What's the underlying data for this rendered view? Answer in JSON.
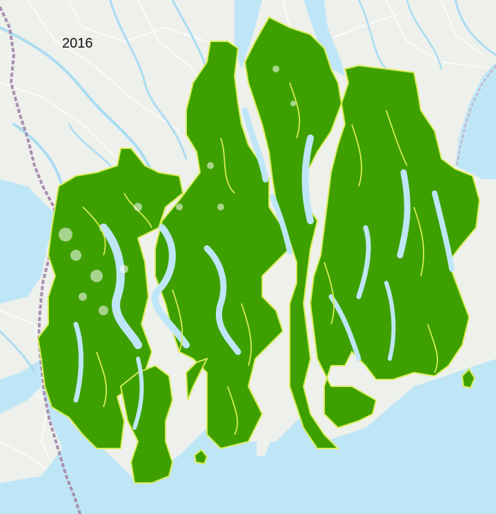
{
  "map": {
    "year_label": "2016",
    "colors": {
      "land": "#eef0ec",
      "water": "#bfe6f6",
      "river": "#a9dcf2",
      "road": "#ffffff",
      "border": "#a88fb0",
      "mangrove": "#3da000",
      "mangrove_outline": "#d8ec55"
    },
    "layers": [
      "land",
      "water",
      "rivers",
      "international-border",
      "mangrove-forest"
    ]
  }
}
